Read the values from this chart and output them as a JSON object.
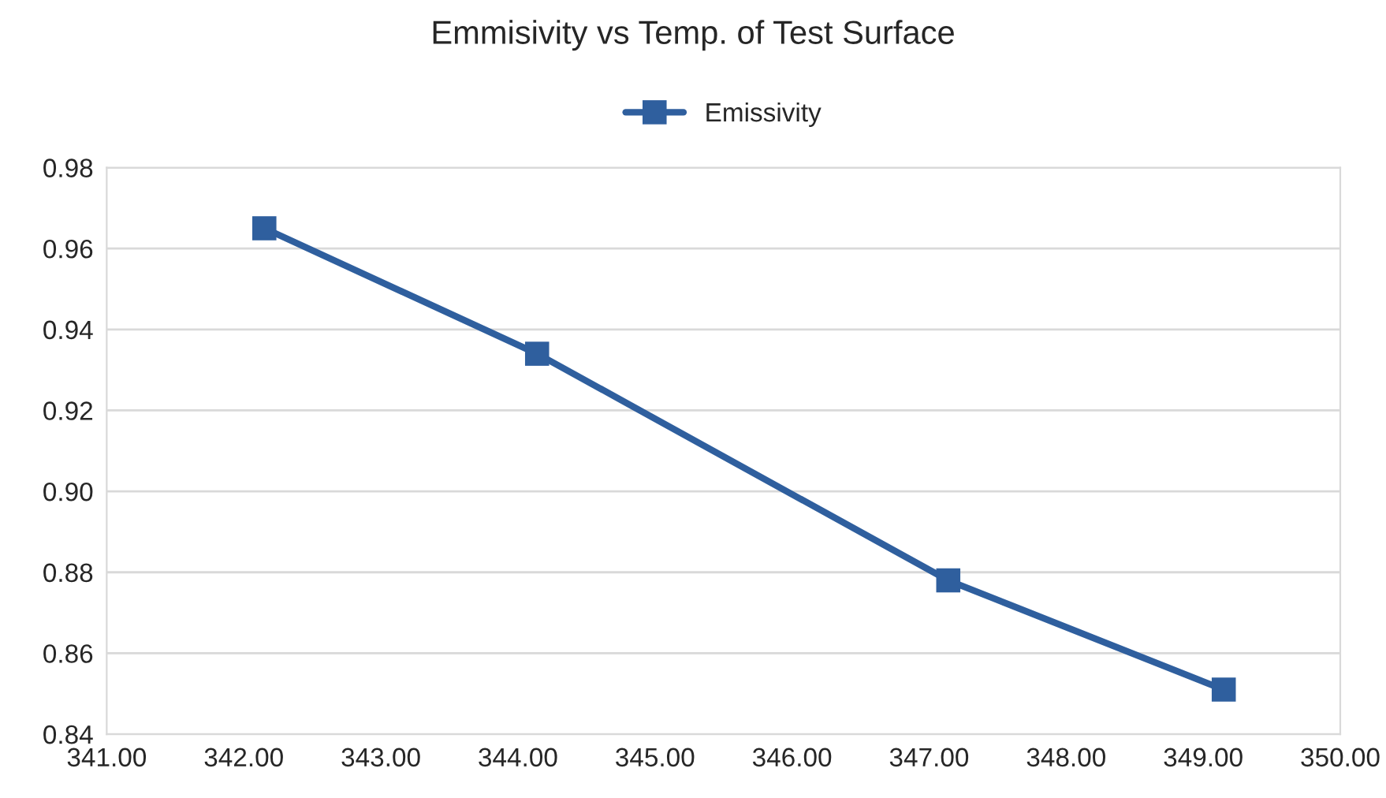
{
  "chart_data": {
    "type": "line",
    "title": "Emmisivity vs Temp. of Test Surface",
    "x": [
      342.15,
      344.14,
      347.14,
      349.15
    ],
    "series": [
      {
        "name": "Emissivity",
        "color": "#2f5f9e",
        "values": [
          0.965,
          0.934,
          0.878,
          0.851
        ]
      }
    ],
    "xlim": [
      341,
      350
    ],
    "xticks": [
      {
        "value": 341,
        "label": "341.00"
      },
      {
        "value": 342,
        "label": "342.00"
      },
      {
        "value": 343,
        "label": "343.00"
      },
      {
        "value": 344,
        "label": "344.00"
      },
      {
        "value": 345,
        "label": "345.00"
      },
      {
        "value": 346,
        "label": "346.00"
      },
      {
        "value": 347,
        "label": "347.00"
      },
      {
        "value": 348,
        "label": "348.00"
      },
      {
        "value": 349,
        "label": "349.00"
      },
      {
        "value": 350,
        "label": "350.00"
      }
    ],
    "ylim": [
      0.84,
      0.98
    ],
    "yticks": [
      {
        "value": 0.84,
        "label": "0.84"
      },
      {
        "value": 0.86,
        "label": "0.86"
      },
      {
        "value": 0.88,
        "label": "0.88"
      },
      {
        "value": 0.9,
        "label": "0.90"
      },
      {
        "value": 0.92,
        "label": "0.92"
      },
      {
        "value": 0.94,
        "label": "0.94"
      },
      {
        "value": 0.96,
        "label": "0.96"
      },
      {
        "value": 0.98,
        "label": "0.98"
      }
    ],
    "grid": "y",
    "legend": "top",
    "marker": "square",
    "line_style": "solid"
  }
}
